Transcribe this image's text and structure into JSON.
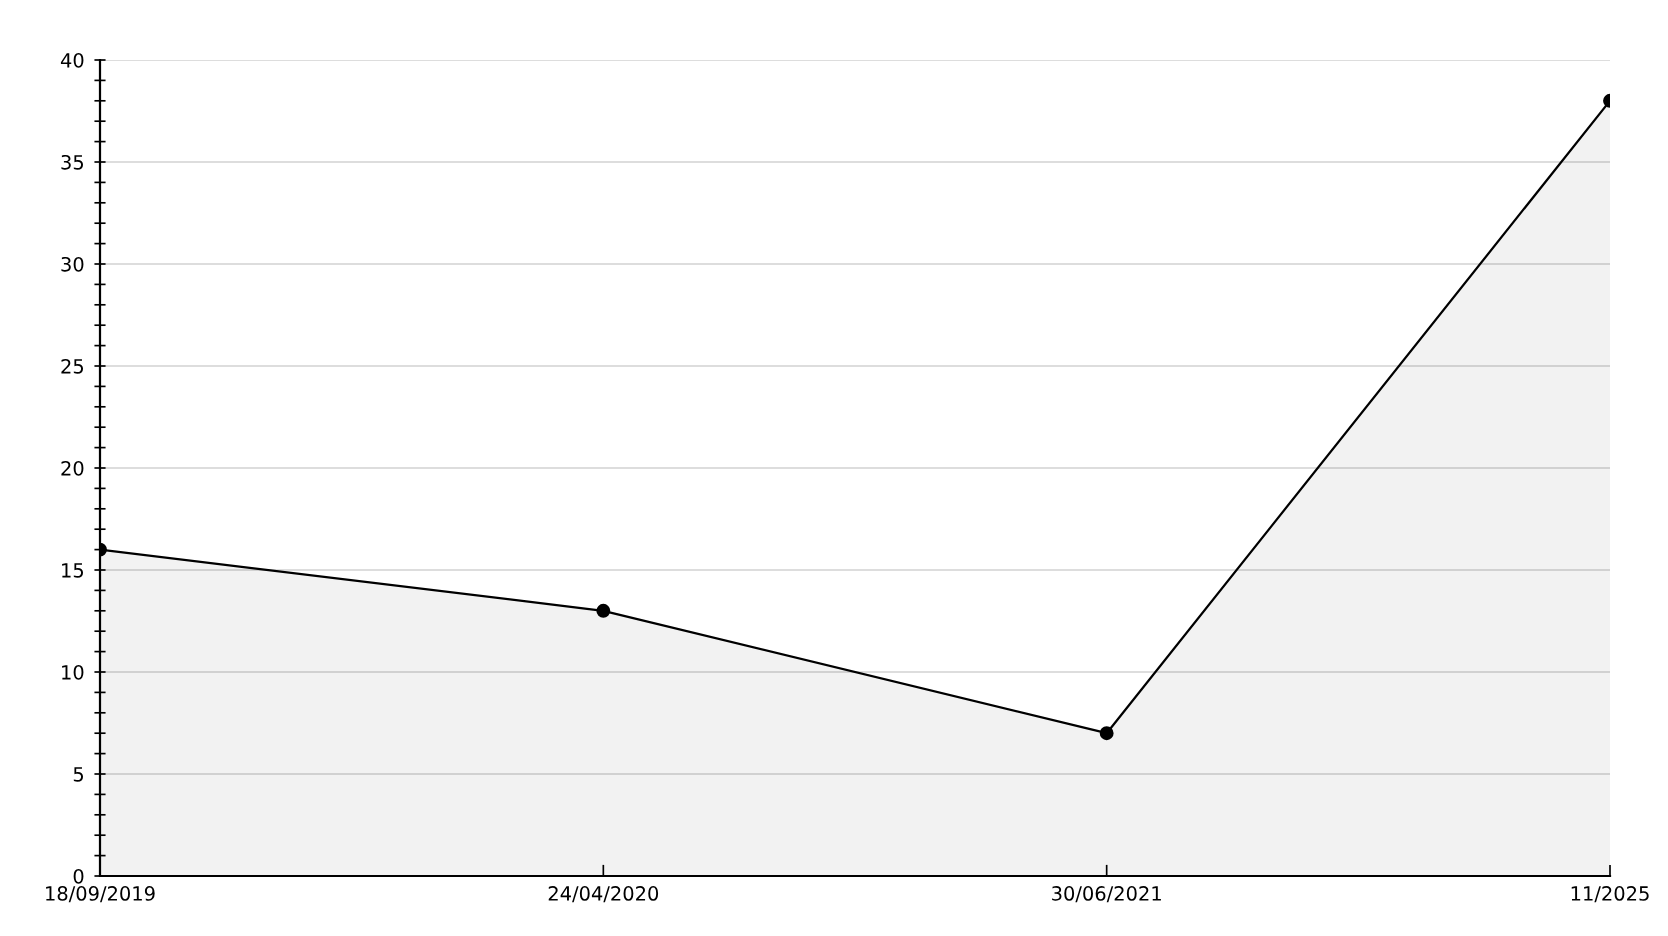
{
  "chart_data": {
    "type": "area",
    "categories": [
      "18/09/2019",
      "24/04/2020",
      "30/06/2021",
      "11/2025"
    ],
    "series": [
      {
        "color": "#000000",
        "values": [
          16,
          13,
          7,
          38
        ]
      }
    ],
    "ylim": [
      0,
      40
    ],
    "yticks": [
      0,
      {
        "value": 1,
        "label": null
      },
      {
        "value": 2,
        "label": null
      },
      {
        "value": 3,
        "label": null
      },
      {
        "value": 4,
        "label": null
      },
      5,
      {
        "value": 6,
        "label": null
      },
      {
        "value": 7,
        "label": null
      },
      {
        "value": 8,
        "label": null
      },
      {
        "value": 9,
        "label": null
      },
      10,
      {
        "value": 11,
        "label": null
      },
      {
        "value": 12,
        "label": null
      },
      {
        "value": 13,
        "label": null
      },
      {
        "value": 14,
        "label": null
      },
      15,
      {
        "value": 16,
        "label": null
      },
      {
        "value": 17,
        "label": null
      },
      {
        "value": 18,
        "label": null
      },
      {
        "value": 19,
        "label": null
      },
      20,
      {
        "value": 21,
        "label": null
      },
      {
        "value": 22,
        "label": null
      },
      {
        "value": 23,
        "label": null
      },
      {
        "value": 24,
        "label": null
      },
      25,
      {
        "value": 26,
        "label": null
      },
      {
        "value": 27,
        "label": null
      },
      {
        "value": 28,
        "label": null
      },
      {
        "value": 29,
        "label": null
      },
      30,
      {
        "value": 31,
        "label": null
      },
      {
        "value": 32,
        "label": null
      },
      {
        "value": 33,
        "label": null
      },
      {
        "value": 34,
        "label": null
      },
      35,
      {
        "value": 36,
        "label": null
      },
      {
        "value": 37,
        "label": null
      },
      {
        "value": 38,
        "label": null
      },
      {
        "value": 39,
        "label": null
      },
      40
    ],
    "grid": "y",
    "marker": "circle",
    "line_style": "solid"
  }
}
